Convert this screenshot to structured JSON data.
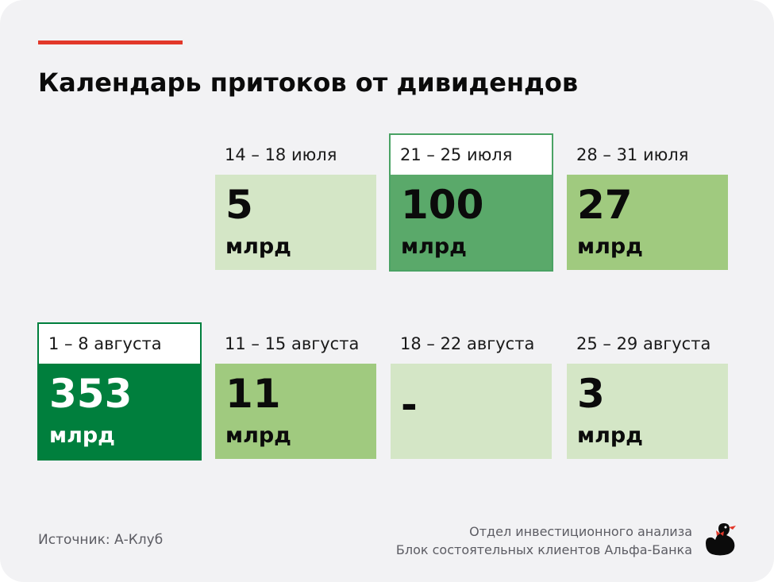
{
  "title": "Календарь притоков от дивидендов",
  "unit": "млрд",
  "colors": {
    "accent": "#e2382a",
    "level_1": "#d4e6c6",
    "level_2": "#a0ca7f",
    "level_3": "#5aa96a",
    "level_4": "#007f3d",
    "outline": "#4aa264"
  },
  "weeks": [
    {
      "date": "14 – 18 июля",
      "value": "5",
      "unit": "млрд"
    },
    {
      "date": "21 – 25 июля",
      "value": "100",
      "unit": "млрд"
    },
    {
      "date": "28 – 31 июля",
      "value": "27",
      "unit": "млрд"
    },
    {
      "date": "1 – 8 августа",
      "value": "353",
      "unit": "млрд"
    },
    {
      "date": "11 – 15 августа",
      "value": "11",
      "unit": "млрд"
    },
    {
      "date": "18 – 22 августа",
      "value": "-",
      "unit": ""
    },
    {
      "date": "25 – 29 августа",
      "value": "3",
      "unit": "млрд"
    }
  ],
  "footer": {
    "source": "Источник: А-Клуб",
    "dept_line1": "Отдел инвестиционного анализа",
    "dept_line2": "Блок состоятельных клиентов Альфа-Банка",
    "logo_icon": "duck-logo-icon"
  }
}
